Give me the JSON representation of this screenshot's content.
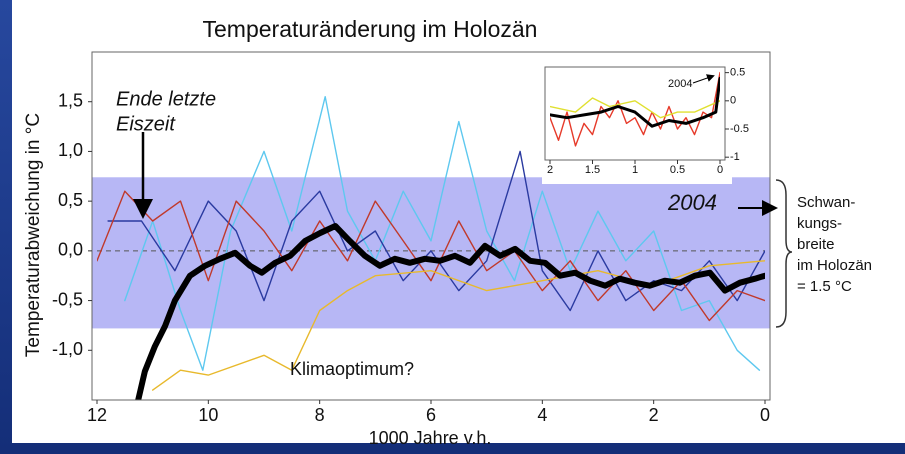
{
  "chart_data": [
    {
      "type": "line",
      "title": "Temperaturänderung im Holozän",
      "xlabel": "1000 Jahre v.h.",
      "ylabel": "Temperaturabweichung in °C",
      "xlim": [
        12,
        0
      ],
      "xticks": [
        12,
        10,
        8,
        6,
        4,
        2,
        0
      ],
      "ylim": [
        -1.5,
        2.0
      ],
      "yticks": [
        {
          "value": 1.5,
          "label": "1,5"
        },
        {
          "value": 1.0,
          "label": "1,0"
        },
        {
          "value": 0.5,
          "label": "0,5"
        },
        {
          "value": 0.0,
          "label": "0,0"
        },
        {
          "value": -0.5,
          "label": "-0,5"
        },
        {
          "value": -1.0,
          "label": "-1,0"
        }
      ],
      "band": [
        -0.78,
        0.74
      ],
      "band_color": "#b7b7f5",
      "hline": 0,
      "annotations": {
        "ice_age": [
          "Ende letzte",
          "Eiszeit"
        ],
        "optimum": "Klimaoptimum?",
        "year": "2004",
        "range": [
          "Schwan-",
          "kungs-",
          "breite",
          "im Holozän",
          "= 1.5 °C"
        ]
      },
      "series": [
        {
          "color": "#5ec8ef",
          "x": [
            11.5,
            11,
            10.5,
            10.1,
            9.6,
            9,
            8.5,
            7.9,
            7.5,
            7,
            6.5,
            6,
            5.5,
            5,
            4.5,
            4,
            3.5,
            3,
            2.5,
            2,
            1.5,
            1,
            0.5,
            0.1
          ],
          "values": [
            -0.5,
            0.3,
            -0.6,
            -1.2,
            0.2,
            1.0,
            0.2,
            1.55,
            0.4,
            -0.1,
            0.6,
            0.1,
            1.3,
            0.2,
            -0.3,
            0.6,
            -0.2,
            0.4,
            -0.1,
            0.2,
            -0.6,
            -0.5,
            -1.0,
            -1.2
          ]
        },
        {
          "color": "#2a3aa0",
          "x": [
            11.8,
            11.2,
            10.6,
            10,
            9.5,
            9,
            8.5,
            8,
            7.5,
            7,
            6.5,
            6,
            5.5,
            5,
            4.4,
            4,
            3.5,
            3,
            2.5,
            2,
            1.5,
            1,
            0.5,
            0
          ],
          "values": [
            0.3,
            0.3,
            -0.2,
            0.5,
            0.2,
            -0.5,
            0.3,
            0.6,
            0,
            0.2,
            -0.3,
            0,
            -0.4,
            -0.1,
            1.0,
            -0.2,
            -0.6,
            0,
            -0.5,
            -0.3,
            -0.4,
            -0.1,
            -0.5,
            0
          ]
        },
        {
          "color": "#c0392b",
          "x": [
            12,
            11.5,
            11,
            10.5,
            10,
            9.5,
            9,
            8.5,
            8,
            7.5,
            7,
            6.5,
            6,
            5.5,
            5,
            4.5,
            4,
            3.5,
            3,
            2.5,
            2,
            1.5,
            1,
            0.5,
            0
          ],
          "values": [
            -0.1,
            0.6,
            0.3,
            0.5,
            -0.3,
            0.5,
            0.2,
            -0.2,
            0.3,
            -0.1,
            0.5,
            0.1,
            -0.3,
            0.3,
            -0.2,
            0,
            -0.4,
            -0.1,
            -0.5,
            -0.2,
            -0.6,
            -0.3,
            -0.7,
            -0.4,
            -0.5
          ]
        },
        {
          "color": "#e8b92c",
          "x": [
            11,
            10.5,
            10,
            9,
            8.5,
            8,
            7.5,
            7,
            6,
            5,
            4,
            3,
            2,
            1,
            0
          ],
          "values": [
            -1.4,
            -1.2,
            -1.25,
            -1.05,
            -1.2,
            -0.6,
            -0.4,
            -0.25,
            -0.2,
            -0.4,
            -0.3,
            -0.2,
            -0.35,
            -0.15,
            -0.1
          ]
        },
        {
          "color": "#000000",
          "width": 6,
          "x": [
            11.26,
            11.14,
            10.96,
            10.78,
            10.6,
            10.33,
            10.06,
            9.79,
            9.52,
            9.25,
            9.04,
            8.8,
            8.53,
            8.26,
            7.99,
            7.72,
            7.46,
            7.19,
            6.92,
            6.65,
            6.38,
            6.11,
            5.84,
            5.57,
            5.3,
            5.03,
            4.76,
            4.49,
            4.22,
            3.95,
            3.68,
            3.41,
            3.14,
            2.87,
            2.61,
            2.34,
            2.07,
            1.8,
            1.53,
            1.26,
            0.99,
            0.72,
            0.45,
            0.18,
            0
          ],
          "values": [
            -1.5,
            -1.21,
            -0.96,
            -0.76,
            -0.5,
            -0.25,
            -0.15,
            -0.08,
            -0.02,
            -0.15,
            -0.22,
            -0.12,
            -0.05,
            0.1,
            0.18,
            0.25,
            0.1,
            -0.05,
            -0.15,
            -0.08,
            -0.12,
            -0.08,
            -0.1,
            -0.05,
            -0.12,
            0.05,
            -0.05,
            0.02,
            -0.1,
            -0.12,
            -0.25,
            -0.22,
            -0.3,
            -0.35,
            -0.28,
            -0.32,
            -0.35,
            -0.3,
            -0.32,
            -0.25,
            -0.22,
            -0.4,
            -0.32,
            -0.28,
            -0.25
          ]
        }
      ]
    },
    {
      "type": "line",
      "xlim": [
        2,
        0
      ],
      "xticks": [
        2,
        1.5,
        1,
        0.5,
        0
      ],
      "ylim": [
        -1.05,
        0.6
      ],
      "yticks": [
        0.5,
        0,
        -0.5,
        -1
      ],
      "annotation": "2004",
      "series": [
        {
          "color": "#e63a2a",
          "x": [
            2,
            1.9,
            1.8,
            1.7,
            1.6,
            1.5,
            1.4,
            1.3,
            1.2,
            1.1,
            1,
            0.9,
            0.8,
            0.7,
            0.6,
            0.5,
            0.4,
            0.3,
            0.2,
            0.1,
            0
          ],
          "values": [
            -0.3,
            -0.7,
            -0.2,
            -0.8,
            -0.4,
            -0.6,
            -0.1,
            -0.3,
            0,
            -0.4,
            -0.3,
            -0.6,
            -0.2,
            -0.5,
            -0.1,
            -0.5,
            -0.3,
            -0.6,
            -0.2,
            -0.3,
            0.5
          ]
        },
        {
          "color": "#e0e030",
          "x": [
            2,
            1.7,
            1.5,
            1.3,
            1,
            0.7,
            0.5,
            0.3,
            0
          ],
          "values": [
            -0.1,
            -0.2,
            0.05,
            -0.1,
            0,
            -0.3,
            -0.2,
            -0.2,
            0
          ]
        },
        {
          "color": "#000000",
          "width": 3,
          "x": [
            2,
            1.8,
            1.6,
            1.4,
            1.2,
            1,
            0.8,
            0.6,
            0.4,
            0.2,
            0.05,
            0
          ],
          "values": [
            -0.25,
            -0.3,
            -0.25,
            -0.2,
            -0.1,
            -0.2,
            -0.45,
            -0.35,
            -0.4,
            -0.3,
            -0.2,
            0.4
          ]
        }
      ]
    }
  ]
}
